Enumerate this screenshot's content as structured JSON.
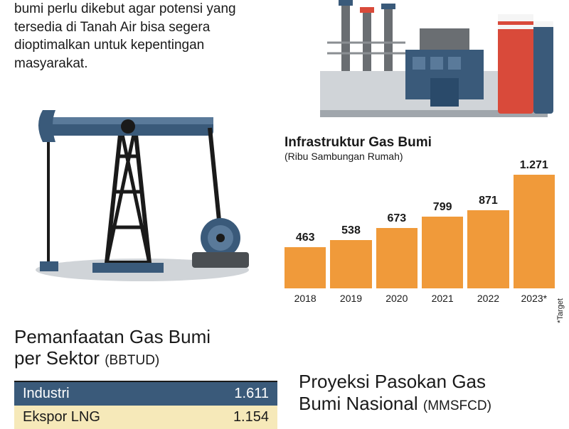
{
  "intro": {
    "text": "bumi perlu dikebut agar potensi yang tersedia di Tanah Air bisa segera dioptimalkan untuk kepentingan masyarakat."
  },
  "barchart": {
    "type": "bar",
    "title": "Infrastruktur Gas Bumi",
    "subtitle": "(Ribu Sambungan Rumah)",
    "categories": [
      "2018",
      "2019",
      "2020",
      "2021",
      "2022",
      "2023*"
    ],
    "values": [
      463,
      538,
      673,
      799,
      871,
      1271
    ],
    "value_labels": [
      "463",
      "538",
      "673",
      "799",
      "871",
      "1.271"
    ],
    "bar_color": "#f09a3a",
    "max_value": 1271,
    "title_fontsize": 19,
    "subtitle_fontsize": 14,
    "value_fontsize": 16,
    "label_fontsize": 14,
    "target_note": "*Target"
  },
  "sector": {
    "title_line1": "Pemanfaatan Gas Bumi",
    "title_line2": "per Sektor",
    "unit": "(BBTUD)",
    "rows": [
      {
        "label": "Industri",
        "value": "1.611",
        "bg": "#3a5a7a",
        "fg": "#ffffff"
      },
      {
        "label": "Ekspor LNG",
        "value": "1.154",
        "bg": "#f6e9b9",
        "fg": "#1a1a1a"
      }
    ]
  },
  "projection": {
    "title_line1": "Proyeksi Pasokan Gas",
    "title_line2": "Bumi Nasional",
    "unit": "(MMSFCD)"
  },
  "colors": {
    "bar": "#f09a3a",
    "table_dark": "#3a5a7a",
    "table_light": "#f6e9b9",
    "text": "#1a1a1a",
    "bg": "#ffffff"
  }
}
